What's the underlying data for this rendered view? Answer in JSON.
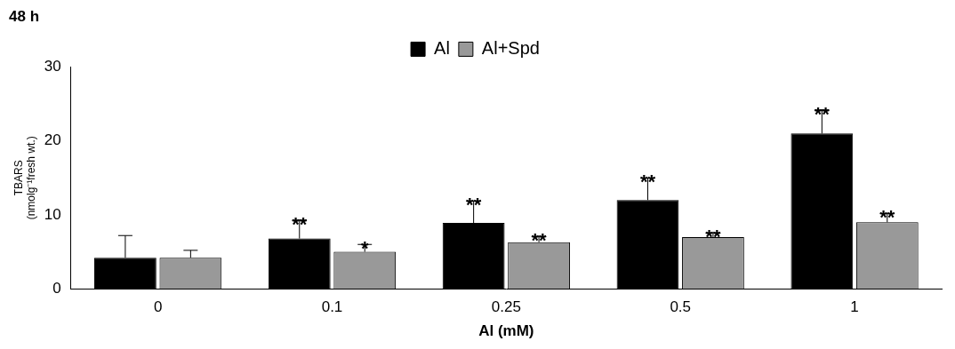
{
  "chart_data": {
    "type": "bar",
    "title": "48 h",
    "x_label": "Al (mM)",
    "y_label": [
      "TBARS",
      "(nmolg⁻¹fresh wt.)"
    ],
    "categories": [
      "0",
      "0.1",
      "0.25",
      "0.5",
      "1"
    ],
    "series": [
      {
        "name": "Al",
        "color": "#000000",
        "values": [
          4.2,
          6.8,
          8.9,
          12,
          21
        ],
        "errors": [
          3,
          2.5,
          3,
          3,
          3.2
        ],
        "significance": [
          null,
          "**",
          "**",
          "**",
          "**"
        ]
      },
      {
        "name": "Al+Spd",
        "color": "#999999",
        "values": [
          4.2,
          5,
          6.3,
          7,
          9
        ],
        "errors": [
          1,
          1,
          0.8,
          0.6,
          1.2
        ],
        "significance": [
          null,
          "*",
          "**",
          "**",
          "**"
        ]
      }
    ],
    "ylim": [
      0,
      30
    ],
    "yticks": [
      0,
      10,
      20,
      30
    ],
    "grid": false,
    "legend": "top"
  }
}
